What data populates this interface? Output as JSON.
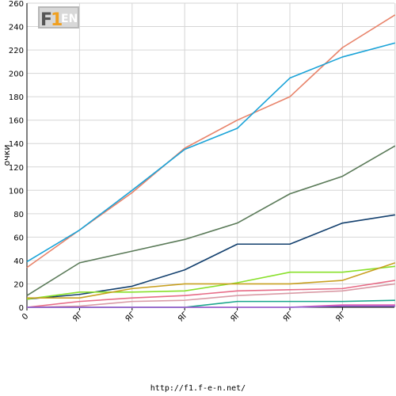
{
  "footer_url": "http://f1.f-e-n.net/",
  "logo": {
    "text_f": "F",
    "text_1": "1",
    "text_en": "EN"
  },
  "chart_data": {
    "type": "line",
    "ylabel": "очки",
    "xlabel": "",
    "ylim": [
      0,
      260
    ],
    "yticks": [
      0,
      20,
      40,
      60,
      80,
      100,
      120,
      140,
      160,
      180,
      200,
      220,
      240,
      260
    ],
    "x_tick_labels": [
      "0",
      "ЯГ",
      "ЯГ",
      "ЯГ",
      "ЯГ",
      "ЯГ",
      "ЯГ"
    ],
    "grid": true,
    "series": [
      {
        "color": "#e8836a",
        "values": [
          34,
          66,
          98,
          136,
          160,
          180,
          222,
          250
        ]
      },
      {
        "color": "#1aa3d8",
        "values": [
          39,
          66,
          100,
          135,
          153,
          196,
          214,
          226
        ]
      },
      {
        "color": "#5a7a58",
        "values": [
          10,
          38,
          48,
          58,
          72,
          97,
          112,
          138
        ]
      },
      {
        "color": "#13406e",
        "values": [
          7,
          11,
          18,
          32,
          54,
          54,
          72,
          79
        ]
      },
      {
        "color": "#88e02a",
        "values": [
          7,
          13,
          13,
          14,
          21,
          30,
          30,
          35
        ]
      },
      {
        "color": "#c8a020",
        "values": [
          8,
          8,
          16,
          20,
          20,
          20,
          23,
          38
        ]
      },
      {
        "color": "#e76b86",
        "values": [
          0,
          5,
          8,
          10,
          14,
          15,
          16,
          23
        ]
      },
      {
        "color": "#d99aa5",
        "values": [
          0,
          1,
          5,
          6,
          10,
          12,
          14,
          20
        ]
      },
      {
        "color": "#1aa58c",
        "values": [
          0,
          0,
          0,
          0,
          5,
          5,
          5,
          6
        ]
      },
      {
        "color": "#e35bb1",
        "values": [
          0,
          0,
          0,
          0,
          0,
          0,
          2,
          2
        ]
      },
      {
        "color": "#8e60d1",
        "values": [
          0,
          0,
          0,
          0,
          0,
          0,
          1,
          1
        ]
      }
    ]
  }
}
